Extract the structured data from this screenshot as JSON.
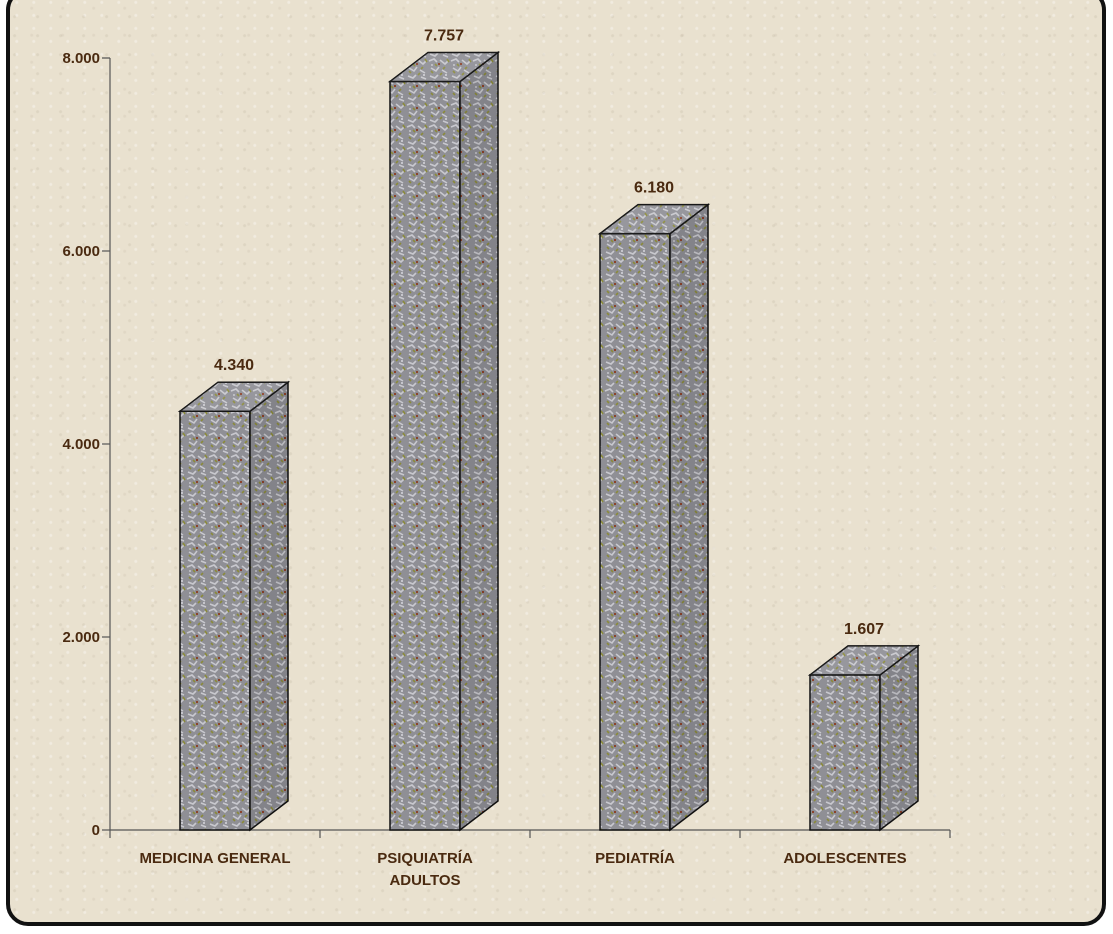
{
  "chart_data": {
    "type": "bar",
    "categories": [
      "MEDICINA GENERAL",
      "PSIQUIATRÍA ADULTOS",
      "PEDIATRÍA",
      "ADOLESCENTES"
    ],
    "category_lines": [
      [
        "MEDICINA GENERAL"
      ],
      [
        "PSIQUIATRÍA",
        "ADULTOS"
      ],
      [
        "PEDIATRÍA"
      ],
      [
        "ADOLESCENTES"
      ]
    ],
    "values": [
      4340,
      7757,
      6180,
      1607
    ],
    "value_labels": [
      "4.340",
      "7.757",
      "6.180",
      "1.607"
    ],
    "yticks": [
      0,
      2000,
      4000,
      6000,
      8000
    ],
    "ytick_labels": [
      "0",
      "2.000",
      "4.000",
      "6.000",
      "8.000"
    ],
    "ylim": [
      0,
      8000
    ],
    "grid": false,
    "title": "",
    "xlabel": "",
    "ylabel": "",
    "colors": {
      "bar_base": "#8f8f95",
      "bar_speckle_light": "#c8c8ce",
      "bar_speckle_olive": "#8a8a3a",
      "bar_speckle_rust": "#8a3a20",
      "background": "#e9e1cf",
      "text": "#4a2a10",
      "axis": "#555555"
    }
  }
}
